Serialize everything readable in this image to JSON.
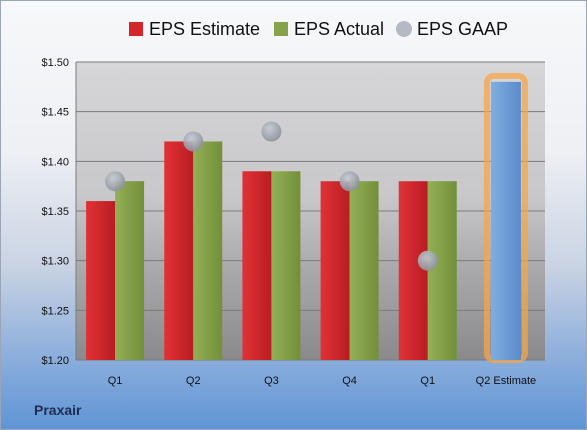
{
  "chart_data": {
    "type": "bar",
    "categories": [
      "Q1",
      "Q2",
      "Q3",
      "Q4",
      "Q1",
      "Q2 Estimate"
    ],
    "series": [
      {
        "name": "EPS Estimate",
        "values": [
          1.36,
          1.42,
          1.39,
          1.38,
          1.38,
          null
        ],
        "color": "#d2262a"
      },
      {
        "name": "EPS Actual",
        "values": [
          1.38,
          1.42,
          1.39,
          1.38,
          1.38,
          null
        ],
        "color": "#86a34a"
      },
      {
        "name": "EPS GAAP",
        "values": [
          1.38,
          1.42,
          1.43,
          1.38,
          1.3,
          null
        ],
        "color": "#b4b9c4"
      }
    ],
    "highlight": {
      "category": "Q2 Estimate",
      "value": 1.48,
      "color": "#6e9fd6",
      "glow": "#f5a54a"
    },
    "ylim": [
      1.2,
      1.5
    ],
    "yticks": [
      "$1.20",
      "$1.25",
      "$1.30",
      "$1.35",
      "$1.40",
      "$1.45",
      "$1.50"
    ],
    "grid": true,
    "legend": "top"
  },
  "footer": {
    "company": "Praxair"
  }
}
